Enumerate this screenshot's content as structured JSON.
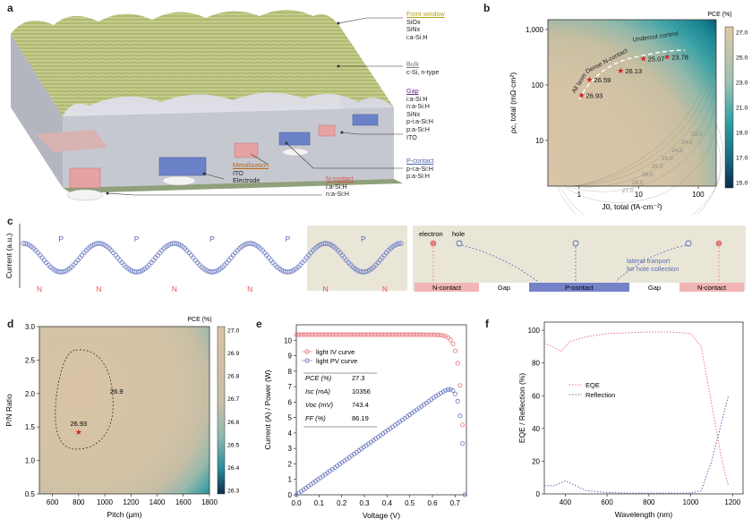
{
  "panel_labels": {
    "a": "a",
    "b": "b",
    "c": "c",
    "d": "d",
    "e": "e",
    "f": "f"
  },
  "panel_a": {
    "front_window": {
      "title": "Front window",
      "lines": [
        "SiOx",
        "SiNx",
        "i:a-Si:H"
      ]
    },
    "bulk": {
      "title": "Bulk",
      "lines": [
        "c-Si, n-type"
      ]
    },
    "gap": {
      "title": "Gap",
      "lines": [
        "i:a-Si:H",
        "n:a-Si:H",
        "SiNx",
        "p-i:a-Si:H",
        "p:a-Si:H",
        "ITO"
      ]
    },
    "metallization": {
      "title": "Metallization",
      "lines": [
        "ITO",
        "Electrode"
      ]
    },
    "n_contact": {
      "title": "N-contact",
      "lines": [
        "i:a-Si:H",
        "n:a-Si:H"
      ]
    },
    "p_contact": {
      "title": "P-contact",
      "lines": [
        "p-i:a-Si:H",
        "p:a-Si:H"
      ]
    }
  },
  "chart_data": [
    {
      "panel": "b",
      "type": "heatmap",
      "xlabel": "J0, total (fA·cm⁻²)",
      "ylabel": "ρc, total (mΩ·cm²)",
      "xscale": "log",
      "yscale": "log",
      "xlim": [
        0.3,
        200
      ],
      "ylim": [
        1.5,
        1500
      ],
      "xticks": [
        "1",
        "10",
        "100"
      ],
      "yticks": [
        "10",
        "100",
        "1,000"
      ],
      "colorbar": {
        "title": "PCE (%)",
        "ticks": [
          "27.0",
          "25.0",
          "23.0",
          "21.0",
          "19.0",
          "17.0",
          "15.0"
        ]
      },
      "contour_labels": [
        "23.5",
        "24.0",
        "24.5",
        "25.0",
        "25.5",
        "26.0",
        "26.5",
        "27.0"
      ],
      "points": [
        {
          "x": 1.1,
          "y": 65,
          "label": "26.93"
        },
        {
          "x": 1.5,
          "y": 125,
          "label": "26.59"
        },
        {
          "x": 5,
          "y": 180,
          "label": "26.13"
        },
        {
          "x": 12,
          "y": 300,
          "label": "25.07"
        },
        {
          "x": 30,
          "y": 320,
          "label": "23.78"
        }
      ],
      "annotations": [
        "All laser",
        "Dense N-contact",
        "Undercut control"
      ]
    },
    {
      "panel": "c",
      "type": "line",
      "ylabel": "Current (a.u.)",
      "peak_label": "P",
      "trough_label": "N",
      "legend": {
        "electron": "electron",
        "hole": "hole"
      },
      "transport_note": [
        "lateral tranport",
        "for hole collection"
      ],
      "regions": [
        "N-contact",
        "Gap",
        "P-contact",
        "Gap",
        "N-contact"
      ]
    },
    {
      "panel": "d",
      "type": "heatmap",
      "xlabel": "Pitch (µm)",
      "ylabel": "P/N Ratio",
      "xlim": [
        500,
        1800
      ],
      "ylim": [
        0.5,
        3.0
      ],
      "xticks": [
        "600",
        "800",
        "1000",
        "1200",
        "1400",
        "1600",
        "1800"
      ],
      "yticks": [
        "0.5",
        "1.0",
        "1.5",
        "2.0",
        "2.5",
        "3.0"
      ],
      "colorbar": {
        "title": "PCE (%)",
        "ticks": [
          "27.0",
          "26.9",
          "26.8",
          "26.7",
          "26.6",
          "26.5",
          "26.4",
          "26.3"
        ]
      },
      "contour_label": "26.9",
      "optimum": {
        "x": 800,
        "y": 1.42,
        "label": "26.93"
      }
    },
    {
      "panel": "e",
      "type": "line",
      "xlabel": "Voltage (V)",
      "ylabel": "Current (A) / Power (W)",
      "xlim": [
        0.0,
        0.75
      ],
      "ylim": [
        0,
        11
      ],
      "xticks": [
        "0.0",
        "0.1",
        "0.2",
        "0.3",
        "0.4",
        "0.5",
        "0.6",
        "0.7"
      ],
      "yticks": [
        "0",
        "1",
        "2",
        "3",
        "4",
        "5",
        "6",
        "7",
        "8",
        "9",
        "10"
      ],
      "series": [
        {
          "name": "light IV curve",
          "color": "#e8727a"
        },
        {
          "name": "light PV curve",
          "color": "#6a78c0"
        }
      ],
      "table": [
        {
          "key": "PCE (%)",
          "value": "27.3"
        },
        {
          "key": "Isc (mA)",
          "value": "10356"
        },
        {
          "key": "Voc (mV)",
          "value": "743.4"
        },
        {
          "key": "FF (%)",
          "value": "86.19"
        }
      ],
      "isc": 10.36,
      "voc": 0.7434,
      "vmp": 0.665,
      "pmax": 6.6
    },
    {
      "panel": "f",
      "type": "line",
      "xlabel": "Wavelength (nm)",
      "ylabel": "EQE / Reflection (%)",
      "xlim": [
        300,
        1250
      ],
      "ylim": [
        0,
        105
      ],
      "xticks": [
        "400",
        "600",
        "800",
        "1000",
        "1200"
      ],
      "yticks": [
        "0",
        "20",
        "40",
        "60",
        "80",
        "100"
      ],
      "series": [
        {
          "name": "EQE",
          "color": "#e8727a",
          "x": [
            300,
            340,
            380,
            420,
            500,
            600,
            700,
            800,
            900,
            1000,
            1050,
            1100,
            1150,
            1180
          ],
          "y": [
            92,
            90,
            87,
            93,
            96,
            98,
            98.5,
            99,
            99,
            98,
            90,
            55,
            20,
            5
          ]
        },
        {
          "name": "Reflection",
          "color": "#5a6ab0",
          "x": [
            300,
            350,
            400,
            450,
            500,
            600,
            700,
            800,
            900,
            1000,
            1050,
            1100,
            1150,
            1180
          ],
          "y": [
            5,
            5,
            8,
            5,
            2,
            0.8,
            0.5,
            0.5,
            0.5,
            0.5,
            2,
            20,
            45,
            60
          ]
        }
      ]
    }
  ]
}
